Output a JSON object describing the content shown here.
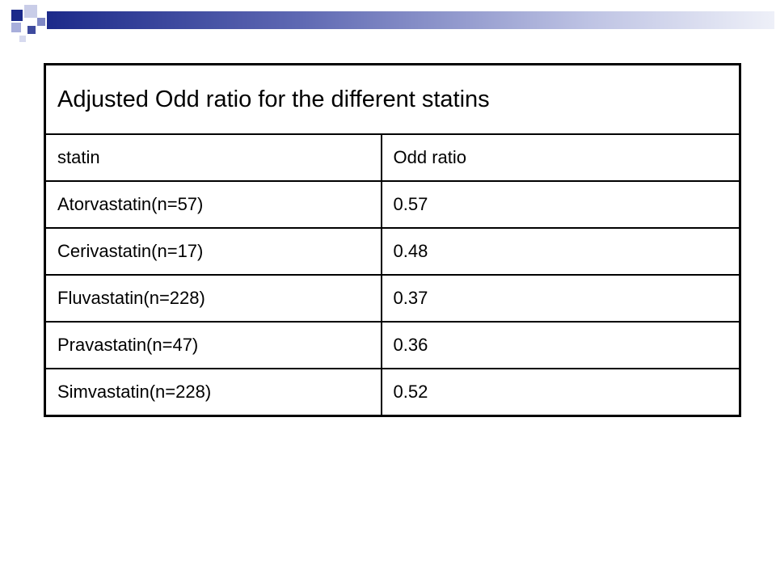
{
  "slide": {
    "accent_colors": {
      "dark_blue": "#1c2a8a",
      "mid_blue": "#5f69b3",
      "light_blue": "#bfc4e4"
    }
  },
  "table": {
    "title": "Adjusted Odd ratio for the different statins",
    "headers": [
      "statin",
      "Odd ratio"
    ],
    "rows": [
      [
        "Atorvastatin(n=57)",
        "0.57"
      ],
      [
        "Cerivastatin(n=17)",
        "0.48"
      ],
      [
        "Fluvastatin(n=228)",
        "0.37"
      ],
      [
        "Pravastatin(n=47)",
        "0.36"
      ],
      [
        "Simvastatin(n=228)",
        "0.52"
      ]
    ]
  }
}
